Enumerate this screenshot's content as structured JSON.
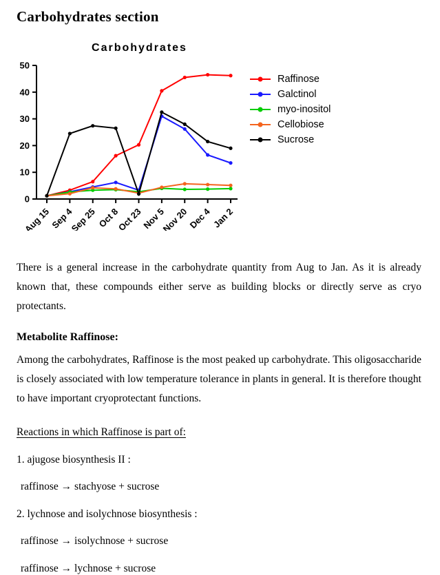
{
  "page": {
    "title": "Carbohydrates section"
  },
  "chart_data": {
    "type": "line",
    "title": "Carbohydrates",
    "categories": [
      "Aug 15",
      "Sep 4",
      "Sep 25",
      "Oct 8",
      "Oct 23",
      "Nov 5",
      "Nov 20",
      "Dec 4",
      "Jan 2"
    ],
    "series": [
      {
        "name": "Raffinose",
        "color": "#ff0000",
        "values": [
          1.2,
          3.3,
          6.5,
          16.2,
          20.3,
          40.5,
          45.5,
          46.5,
          46.2
        ]
      },
      {
        "name": "Galctinol",
        "color": "#1a1aff",
        "values": [
          1.2,
          2.7,
          4.5,
          6.2,
          3.3,
          31.0,
          26.2,
          16.5,
          13.5
        ]
      },
      {
        "name": "myo-inositol",
        "color": "#00cc00",
        "values": [
          1.2,
          2.6,
          3.3,
          3.5,
          2.7,
          4.0,
          3.6,
          3.7,
          3.9
        ]
      },
      {
        "name": "Cellobiose",
        "color": "#f4641e",
        "values": [
          1.2,
          2.0,
          4.2,
          3.8,
          2.2,
          4.4,
          5.7,
          5.4,
          5.1
        ]
      },
      {
        "name": "Sucrose",
        "color": "#000000",
        "values": [
          1.2,
          24.5,
          27.4,
          26.5,
          1.9,
          32.5,
          28.0,
          21.5,
          19.0
        ]
      }
    ],
    "xlabel": "",
    "ylabel": "",
    "ylim": [
      0,
      50
    ],
    "yticks": [
      0,
      10,
      20,
      30,
      40,
      50
    ],
    "legend_position": "right",
    "grid": false
  },
  "sections": {
    "intro": "There is a general increase in the carbohydrate quantity from Aug to Jan. As it is already known that, these compounds either serve as building blocks or directly serve as cryo protectants.",
    "metabolite_heading": "Metabolite Raffinose:",
    "raffinose_paragraph": "Among the carbohydrates, Raffinose is the most peaked up carbohydrate. This oligosaccharide is closely associated with low temperature tolerance in plants in general. It is therefore thought to have important cryoprotectant functions.",
    "reactions_heading": "Reactions in which Raffinose is part of:",
    "reactions": [
      "1. ajugose biosynthesis II :",
      "raffinose → stachyose + sucrose",
      "2. lychnose and isolychnose biosynthesis :",
      "raffinose → isolychnose + sucrose",
      "raffinose → lychnose + sucrose"
    ]
  }
}
